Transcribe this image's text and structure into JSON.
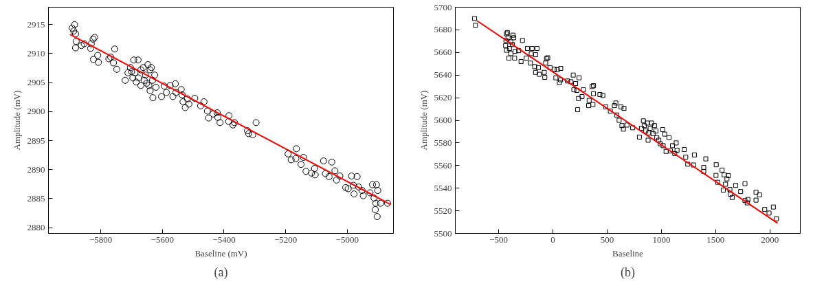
{
  "chart_data": [
    {
      "type": "scatter",
      "xlabel": "Baseline (mV)",
      "ylabel": "Amplitude (mV)",
      "annotations": [
        "(a)"
      ],
      "grid": false,
      "xlim": [
        -5970,
        -4850
      ],
      "ylim": [
        2879,
        2918
      ],
      "xticks": [
        -5800,
        -5600,
        -5400,
        -5200,
        -5000
      ],
      "yticks": [
        2880,
        2885,
        2890,
        2895,
        2900,
        2905,
        2910,
        2915
      ],
      "series": [
        {
          "marker": "circle",
          "color": "#000000",
          "x": [
            -5893,
            -5885,
            -5888,
            -5882,
            -5880,
            -5882,
            -5863,
            -5854,
            -5833,
            -5831,
            -5825,
            -5820,
            -5824,
            -5810,
            -5808,
            -5774,
            -5768,
            -5759,
            -5755,
            -5748,
            -5721,
            -5712,
            -5704,
            -5693,
            -5679,
            -5696,
            -5685,
            -5670,
            -5662,
            -5655,
            -5647,
            -5640,
            -5670,
            -5651,
            -5640,
            -5631,
            -5625,
            -5621,
            -5632,
            -5700,
            -5689,
            -5678,
            -5659,
            -5644,
            -5636,
            -5603,
            -5594,
            -5587,
            -5575,
            -5566,
            -5558,
            -5556,
            -5539,
            -5536,
            -5533,
            -5526,
            -5519,
            -5514,
            -5495,
            -5476,
            -5465,
            -5454,
            -5450,
            -5436,
            -5422,
            -5420,
            -5413,
            -5384,
            -5385,
            -5371,
            -5366,
            -5324,
            -5320,
            -5307,
            -5296,
            -5192,
            -5182,
            -5167,
            -5165,
            -5150,
            -5142,
            -5134,
            -5116,
            -5106,
            -5104,
            -5077,
            -5071,
            -5059,
            -5050,
            -5040,
            -5035,
            -5024,
            -5005,
            -4997,
            -4986,
            -4980,
            -4978,
            -4968,
            -4963,
            -4952,
            -4948,
            -4926,
            -4918,
            -4913,
            -4907,
            -4909,
            -4903,
            -4901,
            -4905,
            -4892,
            -4869
          ],
          "values": [
            2914.4,
            2915.0,
            2913.9,
            2913.4,
            2912.1,
            2911.0,
            2911.4,
            2911.7,
            2910.9,
            2911.7,
            2912.5,
            2912.8,
            2909.0,
            2909.7,
            2908.5,
            2909.1,
            2909.4,
            2908.4,
            2910.8,
            2907.3,
            2905.4,
            2906.7,
            2907.6,
            2908.9,
            2908.9,
            2905.8,
            2905.1,
            2907.2,
            2907.6,
            2906.3,
            2908.1,
            2907.2,
            2904.5,
            2904.9,
            2903.6,
            2902.4,
            2906.3,
            2904.2,
            2905.4,
            2906.9,
            2906.7,
            2905.8,
            2905.4,
            2904.5,
            2907.6,
            2902.6,
            2904.4,
            2903.3,
            2904.5,
            2902.6,
            2904.8,
            2903.3,
            2903.8,
            2902.9,
            2901.7,
            2900.7,
            2902.2,
            2901.3,
            2902.3,
            2901.0,
            2901.7,
            2900.1,
            2898.9,
            2899.6,
            2899.8,
            2899.0,
            2898.1,
            2899.3,
            2898.3,
            2897.7,
            2898.1,
            2896.7,
            2896.2,
            2896.0,
            2898.1,
            2892.7,
            2891.7,
            2891.9,
            2893.6,
            2890.9,
            2892.1,
            2889.7,
            2889.4,
            2890.2,
            2889.1,
            2891.5,
            2889.3,
            2888.8,
            2891.3,
            2889.8,
            2888.2,
            2888.9,
            2886.9,
            2886.7,
            2888.9,
            2887.3,
            2885.8,
            2888.8,
            2887.0,
            2886.4,
            2885.5,
            2886.0,
            2887.4,
            2885.1,
            2884.2,
            2883.1,
            2881.9,
            2886.4,
            2887.4,
            2884.2,
            2884.2
          ]
        },
        {
          "type": "line",
          "color": "#ff0000",
          "line_style": "solid",
          "x": [
            -5900,
            -4860
          ],
          "values": [
            2913.3,
            2884.0
          ]
        }
      ]
    },
    {
      "type": "scatter",
      "xlabel": "Baseline",
      "ylabel": "Amplitude (mV)",
      "annotations": [
        "(b)"
      ],
      "grid": false,
      "xlim": [
        -900,
        2280
      ],
      "ylim": [
        5500,
        5700
      ],
      "xticks": [
        -500,
        0,
        500,
        1000,
        1500,
        2000
      ],
      "yticks": [
        5500,
        5520,
        5540,
        5560,
        5580,
        5600,
        5620,
        5640,
        5660,
        5680,
        5700
      ],
      "series": [
        {
          "marker": "square",
          "color": "#000000",
          "x": [
            -722,
            -714,
            -428,
            -420,
            -433,
            -414,
            -436,
            -428,
            -401,
            -388,
            -369,
            -361,
            -374,
            -348,
            -388,
            -406,
            -353,
            -316,
            -281,
            -294,
            -246,
            -235,
            -192,
            -200,
            -160,
            -147,
            -208,
            -168,
            -134,
            -160,
            -126,
            -80,
            -67,
            -59,
            -48,
            -75,
            -27,
            13,
            40,
            72,
            27,
            59,
            70,
            134,
            166,
            187,
            209,
            241,
            236,
            228,
            193,
            220,
            268,
            281,
            329,
            334,
            361,
            374,
            369,
            374,
            433,
            460,
            487,
            529,
            567,
            580,
            588,
            610,
            628,
            655,
            636,
            650,
            682,
            735,
            797,
            834,
            816,
            842,
            856,
            869,
            882,
            896,
            909,
            923,
            877,
            936,
            949,
            957,
            976,
            989,
            1016,
            1011,
            1030,
            1070,
            1043,
            1083,
            1102,
            1136,
            1123,
            1144,
            1211,
            1224,
            1243,
            1304,
            1296,
            1390,
            1390,
            1409,
            1505,
            1503,
            1519,
            1559,
            1578,
            1604,
            1618,
            1591,
            1570,
            1631,
            1636,
            1652,
            1684,
            1730,
            1770,
            1770,
            1791,
            1797,
            1872,
            1872,
            1904,
            1952,
            1992,
            2032,
            2060
          ],
          "values": [
            5690,
            5684,
            5676.5,
            5677.6,
            5670.6,
            5673,
            5666,
            5662,
            5663.5,
            5669.4,
            5675.3,
            5673,
            5667,
            5661,
            5659,
            5655,
            5655,
            5661.6,
            5670.6,
            5652,
            5655,
            5663.5,
            5663.5,
            5659,
            5658,
            5663.5,
            5650.6,
            5647.5,
            5646.6,
            5642.4,
            5640.7,
            5642.4,
            5650.6,
            5654.6,
            5655.3,
            5638,
            5646.6,
            5645.2,
            5644.7,
            5645.9,
            5637.6,
            5633.4,
            5635.8,
            5634.8,
            5634.1,
            5640,
            5632.5,
            5637.6,
            5619.3,
            5609.4,
            5627,
            5626.4,
            5621,
            5627,
            5613,
            5617.6,
            5629.9,
            5630.6,
            5614,
            5623.5,
            5622.8,
            5622,
            5611.8,
            5608.2,
            5613,
            5615.3,
            5604.7,
            5600,
            5611.8,
            5610.6,
            5595.3,
            5592.2,
            5595.8,
            5593.4,
            5585.2,
            5599.5,
            5593,
            5595.3,
            5590.6,
            5597.6,
            5588.9,
            5593,
            5597.6,
            5588.2,
            5582.4,
            5595.3,
            5590.6,
            5584.7,
            5582.4,
            5579.3,
            5577.6,
            5591.8,
            5587.8,
            5584.7,
            5572.5,
            5572.9,
            5577.6,
            5580,
            5570.6,
            5573.6,
            5574.1,
            5567.5,
            5561.2,
            5569.4,
            5560.5,
            5558.3,
            5554.8,
            5565.9,
            5560.7,
            5551.3,
            5545.2,
            5556,
            5551.8,
            5548.2,
            5551,
            5543.5,
            5538.3,
            5538.8,
            5534.6,
            5531.8,
            5542.4,
            5537,
            5544,
            5529,
            5527,
            5530,
            5536.5,
            5529.4,
            5534.1,
            5521.2,
            5518,
            5523.3,
            5513
          ]
        },
        {
          "type": "line",
          "color": "#ff0000",
          "line_style": "solid",
          "x": [
            -700,
            2070
          ],
          "values": [
            5688,
            5509
          ]
        }
      ]
    }
  ]
}
